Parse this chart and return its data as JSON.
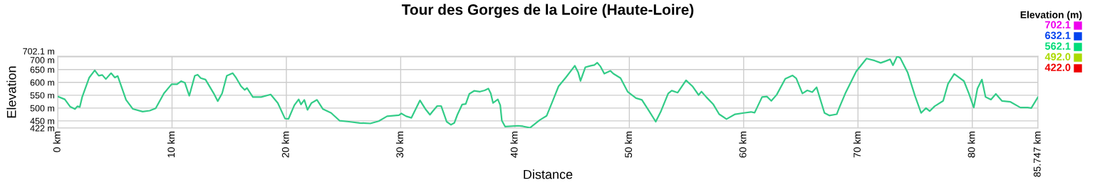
{
  "chart_data": {
    "type": "line",
    "title": "Tour des Gorges de la Loire (Haute-Loire)",
    "xlabel": "Distance",
    "ylabel": "Elevation",
    "clabel": "Elevation (m)",
    "xlim": [
      0,
      85.747
    ],
    "ylim": [
      422,
      702.1
    ],
    "xticks": [
      {
        "value": 0,
        "label": "0 km"
      },
      {
        "value": 10,
        "label": "10 km"
      },
      {
        "value": 20,
        "label": "20 km"
      },
      {
        "value": 30,
        "label": "30 km"
      },
      {
        "value": 40,
        "label": "40 km"
      },
      {
        "value": 50,
        "label": "50 km"
      },
      {
        "value": 60,
        "label": "60 km"
      },
      {
        "value": 70,
        "label": "70 km"
      },
      {
        "value": 80,
        "label": "80 km"
      },
      {
        "value": 85.747,
        "label": "85.747 km"
      }
    ],
    "yticks": [
      {
        "value": 422,
        "label": "422 m"
      },
      {
        "value": 450,
        "label": "450 m"
      },
      {
        "value": 500,
        "label": "500 m"
      },
      {
        "value": 550,
        "label": "550 m"
      },
      {
        "value": 600,
        "label": "600 m"
      },
      {
        "value": 650,
        "label": "650 m"
      },
      {
        "value": 700,
        "label": "700 m"
      },
      {
        "value": 702.1,
        "label": "702.1 m"
      }
    ],
    "cticks": [
      {
        "value": 422.0,
        "label": "422.0"
      },
      {
        "value": 492.0,
        "label": "492.0"
      },
      {
        "value": 562.1,
        "label": "562.1"
      },
      {
        "value": 632.1,
        "label": "632.1"
      },
      {
        "value": 702.1,
        "label": "702.1"
      }
    ],
    "colors": [
      "#ee0000",
      "#aadd00",
      "#00dd77",
      "#0044ee",
      "#ee00ee"
    ],
    "grid": true,
    "marker": "none",
    "line_style": "solid",
    "series": [
      {
        "color": "#33cc88",
        "x": [
          0,
          0.62,
          1.1,
          1.51,
          1.72,
          1.93,
          2.14,
          2.76,
          3.24,
          3.59,
          3.9,
          4.21,
          4.67,
          5.0,
          5.25,
          5.98,
          6.56,
          7.43,
          8.05,
          8.57,
          9.29,
          9.96,
          10.44,
          10.79,
          11.12,
          11.51,
          11.99,
          12.24,
          12.51,
          12.93,
          13.65,
          14.0,
          14.38,
          14.79,
          15.31,
          15.62,
          16.04,
          16.35,
          16.56,
          17.07,
          17.8,
          18.63,
          19.25,
          19.88,
          20.19,
          20.7,
          21.08,
          21.28,
          21.57,
          21.85,
          22.2,
          22.68,
          23.2,
          23.92,
          24.65,
          25.48,
          26.41,
          27.35,
          28.08,
          28.81,
          29.85,
          30.06,
          30.48,
          30.94,
          31.69,
          32.15,
          32.56,
          32.81,
          33.19,
          33.54,
          34.02,
          34.4,
          34.69,
          34.96,
          35.38,
          35.69,
          36.0,
          36.42,
          36.94,
          37.35,
          37.67,
          37.88,
          38.08,
          38.5,
          38.71,
          38.85,
          39.13,
          40.27,
          40.69,
          41.31,
          42.15,
          42.77,
          43.29,
          43.81,
          44.44,
          44.96,
          45.23,
          45.52,
          45.73,
          46.15,
          46.63,
          46.94,
          47.19,
          47.46,
          47.81,
          48.35,
          48.6,
          49.23,
          49.85,
          50.58,
          51.1,
          51.73,
          52.31,
          52.77,
          53.4,
          53.71,
          54.23,
          54.96,
          55.52,
          56.06,
          56.31,
          56.73,
          57.35,
          57.86,
          58.5,
          59.25,
          60.0,
          60.64,
          60.96,
          61.61,
          62.03,
          62.42,
          62.89,
          63.64,
          64.28,
          64.6,
          65.14,
          65.57,
          66.0,
          66.38,
          67.07,
          67.49,
          68.14,
          68.35,
          68.89,
          69.85,
          70.75,
          71.46,
          71.99,
          72.42,
          72.81,
          73.06,
          73.43,
          73.7,
          74.35,
          74.99,
          75.52,
          75.95,
          76.27,
          76.7,
          77.45,
          77.88,
          78.42,
          79.27,
          79.7,
          80.13,
          80.45,
          80.84,
          81.16,
          81.63,
          82.06,
          82.59,
          83.34,
          84.2,
          84.84,
          85.16,
          85.747
        ],
        "values": [
          545,
          534,
          505,
          496,
          507,
          504,
          543,
          619,
          647,
          626,
          629,
          613,
          636,
          619,
          625,
          532,
          497,
          486,
          490,
          499,
          557,
          593,
          593,
          605,
          599,
          548,
          626,
          630,
          617,
          611,
          557,
          527,
          557,
          626,
          636,
          617,
          585,
          571,
          578,
          543,
          543,
          553,
          520,
          459,
          458,
          511,
          534,
          514,
          532,
          493,
          520,
          532,
          496,
          481,
          451,
          447,
          442,
          440,
          449,
          468,
          472,
          479,
          468,
          462,
          530,
          497,
          474,
          488,
          508,
          508,
          447,
          435,
          442,
          474,
          514,
          516,
          555,
          567,
          564,
          569,
          576,
          557,
          520,
          534,
          511,
          451,
          428,
          431,
          429,
          423,
          453,
          470,
          527,
          585,
          619,
          649,
          665,
          640,
          606,
          659,
          665,
          668,
          677,
          663,
          634,
          645,
          634,
          617,
          564,
          539,
          532,
          488,
          447,
          488,
          557,
          568,
          560,
          608,
          585,
          551,
          564,
          543,
          514,
          476,
          457,
          476,
          481,
          485,
          482,
          543,
          545,
          528,
          552,
          614,
          627,
          616,
          557,
          569,
          562,
          581,
          481,
          471,
          476,
          500,
          557,
          643,
          693,
          685,
          676,
          683,
          690,
          667,
          702,
          695,
          638,
          547,
          481,
          500,
          488,
          507,
          528,
          595,
          633,
          605,
          557,
          502,
          576,
          611,
          543,
          533,
          555,
          528,
          524,
          502,
          502,
          500,
          543
        ]
      }
    ]
  }
}
